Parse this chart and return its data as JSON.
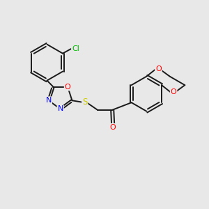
{
  "background_color": "#e8e8e8",
  "bond_color": "#1a1a1a",
  "atom_colors": {
    "N": "#0000ff",
    "O": "#ff0000",
    "S": "#cccc00",
    "Cl": "#00bb00",
    "C": "#1a1a1a"
  },
  "font_size": 7.5,
  "bond_width": 1.4,
  "figsize": [
    3.0,
    3.0
  ],
  "dpi": 100
}
